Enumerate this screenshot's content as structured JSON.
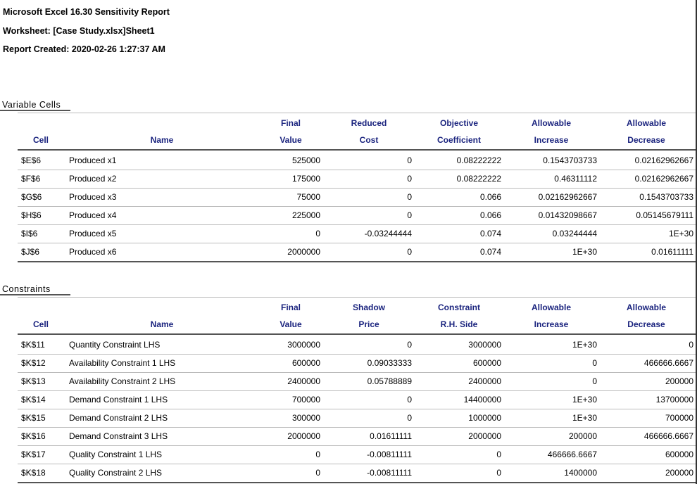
{
  "header": {
    "lines": [
      "Microsoft Excel 16.30 Sensitivity Report",
      "Worksheet: [Case Study.xlsx]Sheet1",
      "Report Created: 2020-02-26 1:27:37 AM"
    ]
  },
  "sections": [
    {
      "title": "Variable Cells",
      "columns": [
        {
          "label": "Cell"
        },
        {
          "label": "Name"
        },
        {
          "top": "Final",
          "bottom": "Value"
        },
        {
          "top": "Reduced",
          "bottom": "Cost"
        },
        {
          "top": "Objective",
          "bottom": "Coefficient"
        },
        {
          "top": "Allowable",
          "bottom": "Increase"
        },
        {
          "top": "Allowable",
          "bottom": "Decrease"
        }
      ],
      "rows": [
        [
          "$E$6",
          "Produced x1",
          "525000",
          "0",
          "0.08222222",
          "0.1543703733",
          "0.02162962667"
        ],
        [
          "$F$6",
          "Produced x2",
          "175000",
          "0",
          "0.08222222",
          "0.46311112",
          "0.02162962667"
        ],
        [
          "$G$6",
          "Produced x3",
          "75000",
          "0",
          "0.066",
          "0.02162962667",
          "0.1543703733"
        ],
        [
          "$H$6",
          "Produced x4",
          "225000",
          "0",
          "0.066",
          "0.01432098667",
          "0.05145679111"
        ],
        [
          "$I$6",
          "Produced x5",
          "0",
          "-0.03244444",
          "0.074",
          "0.03244444",
          "1E+30"
        ],
        [
          "$J$6",
          "Produced x6",
          "2000000",
          "0",
          "0.074",
          "1E+30",
          "0.01611111"
        ]
      ]
    },
    {
      "title": "Constraints",
      "columns": [
        {
          "label": "Cell"
        },
        {
          "label": "Name"
        },
        {
          "top": "Final",
          "bottom": "Value"
        },
        {
          "top": "Shadow",
          "bottom": "Price"
        },
        {
          "top": "Constraint",
          "bottom": "R.H. Side"
        },
        {
          "top": "Allowable",
          "bottom": "Increase"
        },
        {
          "top": "Allowable",
          "bottom": "Decrease"
        }
      ],
      "rows": [
        [
          "$K$11",
          "Quantity Constraint LHS",
          "3000000",
          "0",
          "3000000",
          "1E+30",
          "0"
        ],
        [
          "$K$12",
          "Availability Constraint 1 LHS",
          "600000",
          "0.09033333",
          "600000",
          "0",
          "466666.6667"
        ],
        [
          "$K$13",
          "Availability Constraint 2 LHS",
          "2400000",
          "0.05788889",
          "2400000",
          "0",
          "200000"
        ],
        [
          "$K$14",
          "Demand Constraint 1 LHS",
          "700000",
          "0",
          "14400000",
          "1E+30",
          "13700000"
        ],
        [
          "$K$15",
          "Demand Constraint 2 LHS",
          "300000",
          "0",
          "1000000",
          "1E+30",
          "700000"
        ],
        [
          "$K$16",
          "Demand Constraint 3 LHS",
          "2000000",
          "0.01611111",
          "2000000",
          "200000",
          "466666.6667"
        ],
        [
          "$K$17",
          "Quality Constraint 1 LHS",
          "0",
          "-0.00811111",
          "0",
          "466666.6667",
          "600000"
        ],
        [
          "$K$18",
          "Quality Constraint 2 LHS",
          "0",
          "-0.00811111",
          "0",
          "1400000",
          "200000"
        ]
      ]
    }
  ]
}
